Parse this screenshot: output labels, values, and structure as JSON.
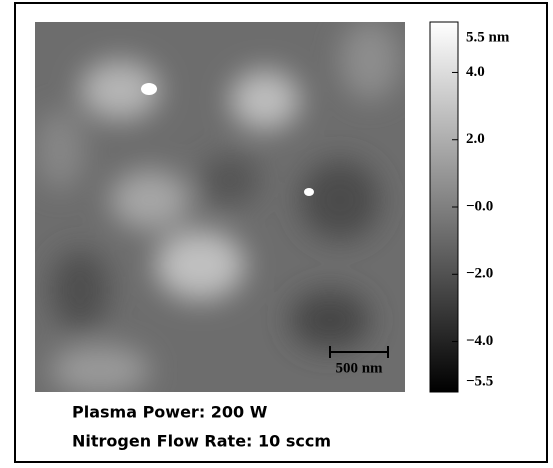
{
  "colorbar": {
    "range": [
      -5.5,
      5.5
    ],
    "ticks": [
      {
        "value": 5.5,
        "label": "5.5 nm"
      },
      {
        "value": 4.0,
        "label": "4.0"
      },
      {
        "value": 2.0,
        "label": "2.0"
      },
      {
        "value": 0,
        "label": "−0.0"
      },
      {
        "value": -2.0,
        "label": "−2.0"
      },
      {
        "value": -4.0,
        "label": "−4.0"
      },
      {
        "value": -5.5,
        "label": "−5.5"
      }
    ]
  },
  "scale_bar": {
    "label": "500 nm"
  },
  "caption": [
    "Plasma Power: 200 W",
    "Nitrogen Flow Rate: 10 sccm"
  ]
}
